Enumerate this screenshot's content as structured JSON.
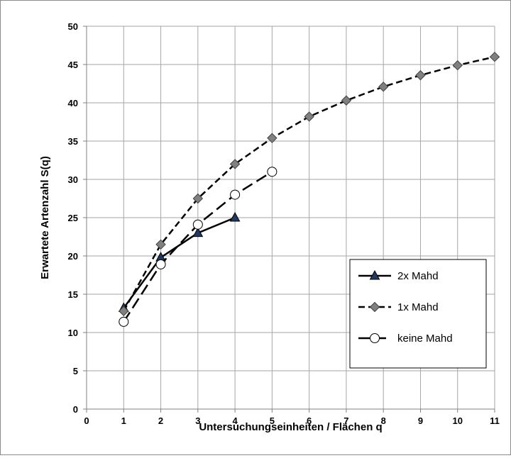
{
  "chart_data": {
    "type": "line",
    "title": "",
    "xlabel": "Untersuchungseinheiten / Flächen q",
    "ylabel": "Erwartete Artenzahl S(q)",
    "xlim": [
      0,
      11
    ],
    "ylim": [
      0,
      50
    ],
    "xticks": [
      "0",
      "1",
      "2",
      "3",
      "4",
      "5",
      "6",
      "7",
      "8",
      "9",
      "10",
      "11"
    ],
    "yticks": [
      "0",
      "5",
      "10",
      "15",
      "20",
      "25",
      "30",
      "35",
      "40",
      "45",
      "50"
    ],
    "grid": true,
    "legend_position": "right",
    "series": [
      {
        "name": "2x Mahd",
        "marker": "triangle",
        "line_style": "solid",
        "color": "#000000",
        "marker_fill": "#1f3864",
        "x": [
          1,
          2,
          3,
          4
        ],
        "y": [
          13.2,
          19.8,
          23.0,
          25.0
        ]
      },
      {
        "name": "1x Mahd",
        "marker": "diamond",
        "line_style": "short-dash",
        "color": "#000000",
        "marker_fill": "#808080",
        "x": [
          1,
          2,
          3,
          4,
          5,
          6,
          7,
          8,
          9,
          10,
          11
        ],
        "y": [
          12.8,
          21.5,
          27.5,
          32.0,
          35.4,
          38.2,
          40.3,
          42.1,
          43.6,
          44.9,
          46.0
        ]
      },
      {
        "name": "keine Mahd",
        "marker": "circle",
        "line_style": "long-dash",
        "color": "#000000",
        "marker_fill": "#ffffff",
        "x": [
          1,
          2,
          3,
          4,
          5
        ],
        "y": [
          11.4,
          18.9,
          24.1,
          28.0,
          31.0
        ]
      }
    ]
  }
}
